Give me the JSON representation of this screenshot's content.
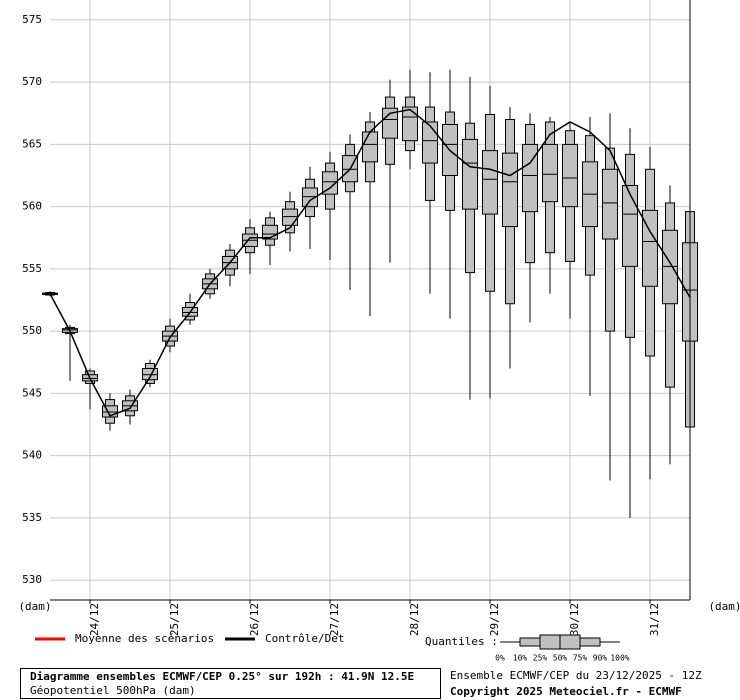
{
  "chart_data": {
    "type": "boxplot",
    "x": [
      23.5,
      23.75,
      24,
      24.25,
      24.5,
      24.75,
      25,
      25.25,
      25.5,
      25.75,
      26,
      26.25,
      26.5,
      26.75,
      27,
      27.25,
      27.5,
      27.75,
      28,
      28.25,
      28.5,
      28.75,
      29,
      29.25,
      29.5,
      29.75,
      30,
      30.25,
      30.5,
      30.75,
      31,
      31.25,
      31.5
    ],
    "boxes": [
      {
        "min": 552.8,
        "p10": 552.9,
        "p25": 552.95,
        "median": 553,
        "p75": 553.05,
        "p90": 553.1,
        "max": 553.2
      },
      {
        "min": 546,
        "p10": 549.8,
        "p25": 549.9,
        "median": 550.1,
        "p75": 550.2,
        "p90": 550.3,
        "max": 550.5
      },
      {
        "min": 543.7,
        "p10": 545.8,
        "p25": 546,
        "median": 546.2,
        "p75": 546.5,
        "p90": 546.8,
        "max": 547
      },
      {
        "min": 542,
        "p10": 542.6,
        "p25": 543.1,
        "median": 543.5,
        "p75": 544,
        "p90": 544.5,
        "max": 545
      },
      {
        "min": 542.5,
        "p10": 543.2,
        "p25": 543.6,
        "median": 544,
        "p75": 544.4,
        "p90": 544.8,
        "max": 545.3
      },
      {
        "min": 545.5,
        "p10": 545.8,
        "p25": 546.1,
        "median": 546.5,
        "p75": 547,
        "p90": 547.4,
        "max": 547.7
      },
      {
        "min": 548.3,
        "p10": 548.8,
        "p25": 549.2,
        "median": 549.6,
        "p75": 550,
        "p90": 550.4,
        "max": 551
      },
      {
        "min": 550.5,
        "p10": 550.9,
        "p25": 551.2,
        "median": 551.5,
        "p75": 551.9,
        "p90": 552.3,
        "max": 553
      },
      {
        "min": 552.6,
        "p10": 553,
        "p25": 553.4,
        "median": 553.8,
        "p75": 554.2,
        "p90": 554.6,
        "max": 555
      },
      {
        "min": 553.6,
        "p10": 554.5,
        "p25": 555,
        "median": 555.5,
        "p75": 556,
        "p90": 556.5,
        "max": 557
      },
      {
        "min": 554.6,
        "p10": 556.3,
        "p25": 556.8,
        "median": 557.3,
        "p75": 557.8,
        "p90": 558.3,
        "max": 559
      },
      {
        "min": 555.3,
        "p10": 556.9,
        "p25": 557.4,
        "median": 557.8,
        "p75": 558.5,
        "p90": 559.1,
        "max": 559.6
      },
      {
        "min": 556.4,
        "p10": 557.9,
        "p25": 558.5,
        "median": 559.2,
        "p75": 559.8,
        "p90": 560.4,
        "max": 561.2
      },
      {
        "min": 556.6,
        "p10": 559.2,
        "p25": 560,
        "median": 560.8,
        "p75": 561.5,
        "p90": 562.2,
        "max": 563.2
      },
      {
        "min": 555.7,
        "p10": 559.8,
        "p25": 561,
        "median": 562,
        "p75": 562.8,
        "p90": 563.5,
        "max": 564.4
      },
      {
        "min": 553.3,
        "p10": 561.2,
        "p25": 562,
        "median": 563,
        "p75": 564.1,
        "p90": 565,
        "max": 565.8
      },
      {
        "min": 551.2,
        "p10": 562,
        "p25": 563.6,
        "median": 565,
        "p75": 566,
        "p90": 566.8,
        "max": 567.6
      },
      {
        "min": 555.5,
        "p10": 563.4,
        "p25": 565.5,
        "median": 567,
        "p75": 567.9,
        "p90": 568.8,
        "max": 570.2
      },
      {
        "min": 563,
        "p10": 564.5,
        "p25": 565.3,
        "median": 567.2,
        "p75": 568,
        "p90": 568.8,
        "max": 571
      },
      {
        "min": 553,
        "p10": 560.5,
        "p25": 563.5,
        "median": 565.3,
        "p75": 566.8,
        "p90": 568,
        "max": 570.8
      },
      {
        "min": 551,
        "p10": 559.7,
        "p25": 562.5,
        "median": 565,
        "p75": 566.6,
        "p90": 567.6,
        "max": 571
      },
      {
        "min": 544.5,
        "p10": 554.7,
        "p25": 559.8,
        "median": 563.5,
        "p75": 565.4,
        "p90": 566.7,
        "max": 570.4
      },
      {
        "min": 544.6,
        "p10": 553.2,
        "p25": 559.4,
        "median": 562.2,
        "p75": 564.5,
        "p90": 567.4,
        "max": 569.7
      },
      {
        "min": 547,
        "p10": 552.2,
        "p25": 558.4,
        "median": 562,
        "p75": 564.3,
        "p90": 567,
        "max": 568
      },
      {
        "min": 550.7,
        "p10": 555.5,
        "p25": 559.6,
        "median": 562.5,
        "p75": 565,
        "p90": 566.6,
        "max": 567.5
      },
      {
        "min": 553,
        "p10": 556.3,
        "p25": 560.4,
        "median": 562.6,
        "p75": 565,
        "p90": 566.8,
        "max": 567.2
      },
      {
        "min": 551,
        "p10": 555.6,
        "p25": 560,
        "median": 562.3,
        "p75": 565,
        "p90": 566.1,
        "max": 566.7
      },
      {
        "min": 544.8,
        "p10": 554.5,
        "p25": 558.4,
        "median": 561,
        "p75": 563.6,
        "p90": 565.7,
        "max": 567.2
      },
      {
        "min": 538,
        "p10": 550,
        "p25": 557.4,
        "median": 560.3,
        "p75": 563,
        "p90": 564.7,
        "max": 567.5
      },
      {
        "min": 535,
        "p10": 549.5,
        "p25": 555.2,
        "median": 559.4,
        "p75": 561.7,
        "p90": 564.2,
        "max": 566.3
      },
      {
        "min": 538.1,
        "p10": 548,
        "p25": 553.6,
        "median": 557.2,
        "p75": 559.7,
        "p90": 563,
        "max": 564.8
      },
      {
        "min": 539.3,
        "p10": 545.5,
        "p25": 552.2,
        "median": 555.2,
        "p75": 558.1,
        "p90": 560.3,
        "max": 561.7
      },
      {
        "min": 542.3,
        "p10": 542.3,
        "p25": 549.2,
        "median": 553.3,
        "p75": 557.1,
        "p90": 559.6,
        "max": 561.3
      }
    ],
    "box_color": "#c0c0c0",
    "control": {
      "name": "Contrôle/Det",
      "color": "#000000",
      "values": [
        553,
        550,
        546.2,
        543.2,
        543.8,
        546.3,
        549.5,
        551.5,
        553.8,
        555.5,
        557.5,
        557.5,
        558.3,
        560.5,
        561.5,
        563,
        566,
        567.5,
        567.8,
        566.5,
        564.5,
        563.2,
        563,
        562.5,
        563.5,
        565.8,
        566.8,
        566,
        564.5,
        561,
        558,
        555.5,
        552.7
      ]
    },
    "mean": {
      "name": "Moyenne des scénarios",
      "color": "#ff0000"
    },
    "xlim": [
      23.5,
      31.5
    ],
    "xticks": [
      {
        "value": 24,
        "label": "24/12"
      },
      {
        "value": 25,
        "label": "25/12"
      },
      {
        "value": 26,
        "label": "26/12"
      },
      {
        "value": 27,
        "label": "27/12"
      },
      {
        "value": 28,
        "label": "28/12"
      },
      {
        "value": 29,
        "label": "29/12"
      },
      {
        "value": 30,
        "label": "30/12"
      },
      {
        "value": 31,
        "label": "31/12"
      }
    ],
    "ylim": [
      528.4,
      576.6
    ],
    "yticks": [
      530,
      535,
      540,
      545,
      550,
      555,
      560,
      565,
      570,
      575
    ],
    "grid": true,
    "y_unit_left": "(dam)",
    "y_unit_right": "(dam)",
    "quantiles_title": "Quantiles :",
    "quantile_labels": [
      "0%",
      "10%",
      "25%",
      "50%",
      "75%",
      "90%",
      "100%"
    ],
    "title": "Diagramme ensembles ECMWF/CEP 0.25° sur 192h : 41.9N 12.5E",
    "subtitle": "Géopotentiel 500hPa (dam)",
    "run_info": "Ensemble ECMWF/CEP du 23/12/2025 - 12Z",
    "copyright": "Copyright 2025 Meteociel.fr - ECMWF"
  }
}
